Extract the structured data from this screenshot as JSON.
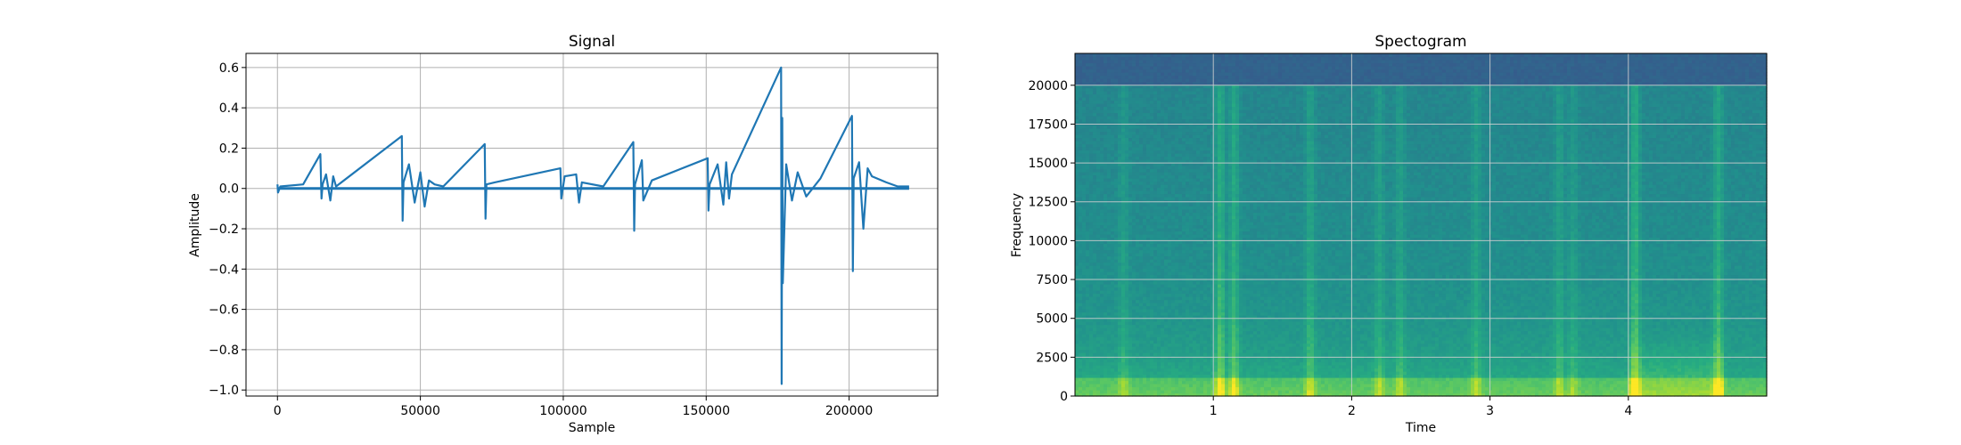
{
  "chart_data": [
    {
      "type": "line",
      "title": "Signal",
      "xlabel": "Sample",
      "ylabel": "Amplitude",
      "xlim": [
        -11000,
        231000
      ],
      "ylim": [
        -1.03,
        0.67
      ],
      "grid": true,
      "line_color": "#1f77b4",
      "xticks": [
        0,
        50000,
        100000,
        150000,
        200000
      ],
      "xtick_labels": [
        "0",
        "50000",
        "100000",
        "150000",
        "200000"
      ],
      "yticks": [
        0.6,
        0.4,
        0.2,
        0.0,
        -0.2,
        -0.4,
        -0.6,
        -0.8,
        -1.0
      ],
      "ytick_labels": [
        "0.6",
        "0.4",
        "0.2",
        "0.0",
        "−0.2",
        "−0.4",
        "−0.6",
        "−0.8",
        "−1.0"
      ],
      "series": [
        {
          "x": [
            0,
            200,
            1000,
            9000,
            15000,
            15400,
            15800,
            17000,
            18500,
            19500,
            20500,
            43500,
            43800,
            44100,
            46000,
            48000,
            50000,
            51500,
            53000,
            55000,
            58000,
            72500,
            72800,
            73100,
            76000,
            99000,
            99300,
            100500,
            104500,
            105500,
            106500,
            114000,
            124500,
            124800,
            125100,
            127500,
            128000,
            131000,
            150500,
            150800,
            151200,
            154000,
            156000,
            157000,
            158000,
            159000,
            176200,
            176400,
            176600,
            176800,
            178000,
            180000,
            182000,
            185000,
            190000,
            201000,
            201300,
            201600,
            203500,
            205000,
            206500,
            208000,
            213000,
            217000,
            221000
          ],
          "y": [
            0.02,
            -0.02,
            0.01,
            0.02,
            0.17,
            -0.05,
            0.02,
            0.07,
            -0.06,
            0.06,
            0.01,
            0.26,
            -0.16,
            0.03,
            0.12,
            -0.07,
            0.08,
            -0.09,
            0.04,
            0.02,
            0.01,
            0.22,
            -0.15,
            0.02,
            0.03,
            0.1,
            -0.05,
            0.06,
            0.07,
            -0.07,
            0.03,
            0.01,
            0.23,
            -0.21,
            0.02,
            0.14,
            -0.06,
            0.04,
            0.15,
            -0.11,
            0.02,
            0.12,
            -0.08,
            0.13,
            -0.05,
            0.07,
            0.6,
            -0.97,
            0.35,
            -0.47,
            0.12,
            -0.06,
            0.08,
            -0.04,
            0.05,
            0.36,
            -0.41,
            0.05,
            0.13,
            -0.2,
            0.1,
            0.06,
            0.03,
            0.01,
            0.01
          ]
        }
      ]
    },
    {
      "type": "heatmap",
      "title": "Spectogram",
      "xlabel": "Time",
      "ylabel": "Frequency",
      "xlim": [
        0.0,
        5.0
      ],
      "ylim": [
        0,
        22050
      ],
      "grid": true,
      "colormap": "viridis",
      "xticks": [
        1,
        2,
        3,
        4
      ],
      "xtick_labels": [
        "1",
        "2",
        "3",
        "4"
      ],
      "yticks": [
        0,
        2500,
        5000,
        7500,
        10000,
        12500,
        15000,
        17500,
        20000
      ],
      "ytick_labels": [
        "0",
        "2500",
        "5000",
        "7500",
        "10000",
        "12500",
        "15000",
        "17500",
        "20000"
      ],
      "cutoff_hz": 20000,
      "bright_bands_time": [
        0.35,
        1.05,
        1.15,
        1.7,
        2.2,
        2.35,
        2.9,
        3.5,
        3.6,
        4.05,
        4.65
      ],
      "bright_bands_strength": [
        0.4,
        0.9,
        0.8,
        0.6,
        0.5,
        0.5,
        0.5,
        0.5,
        0.4,
        0.9,
        0.8
      ]
    }
  ]
}
